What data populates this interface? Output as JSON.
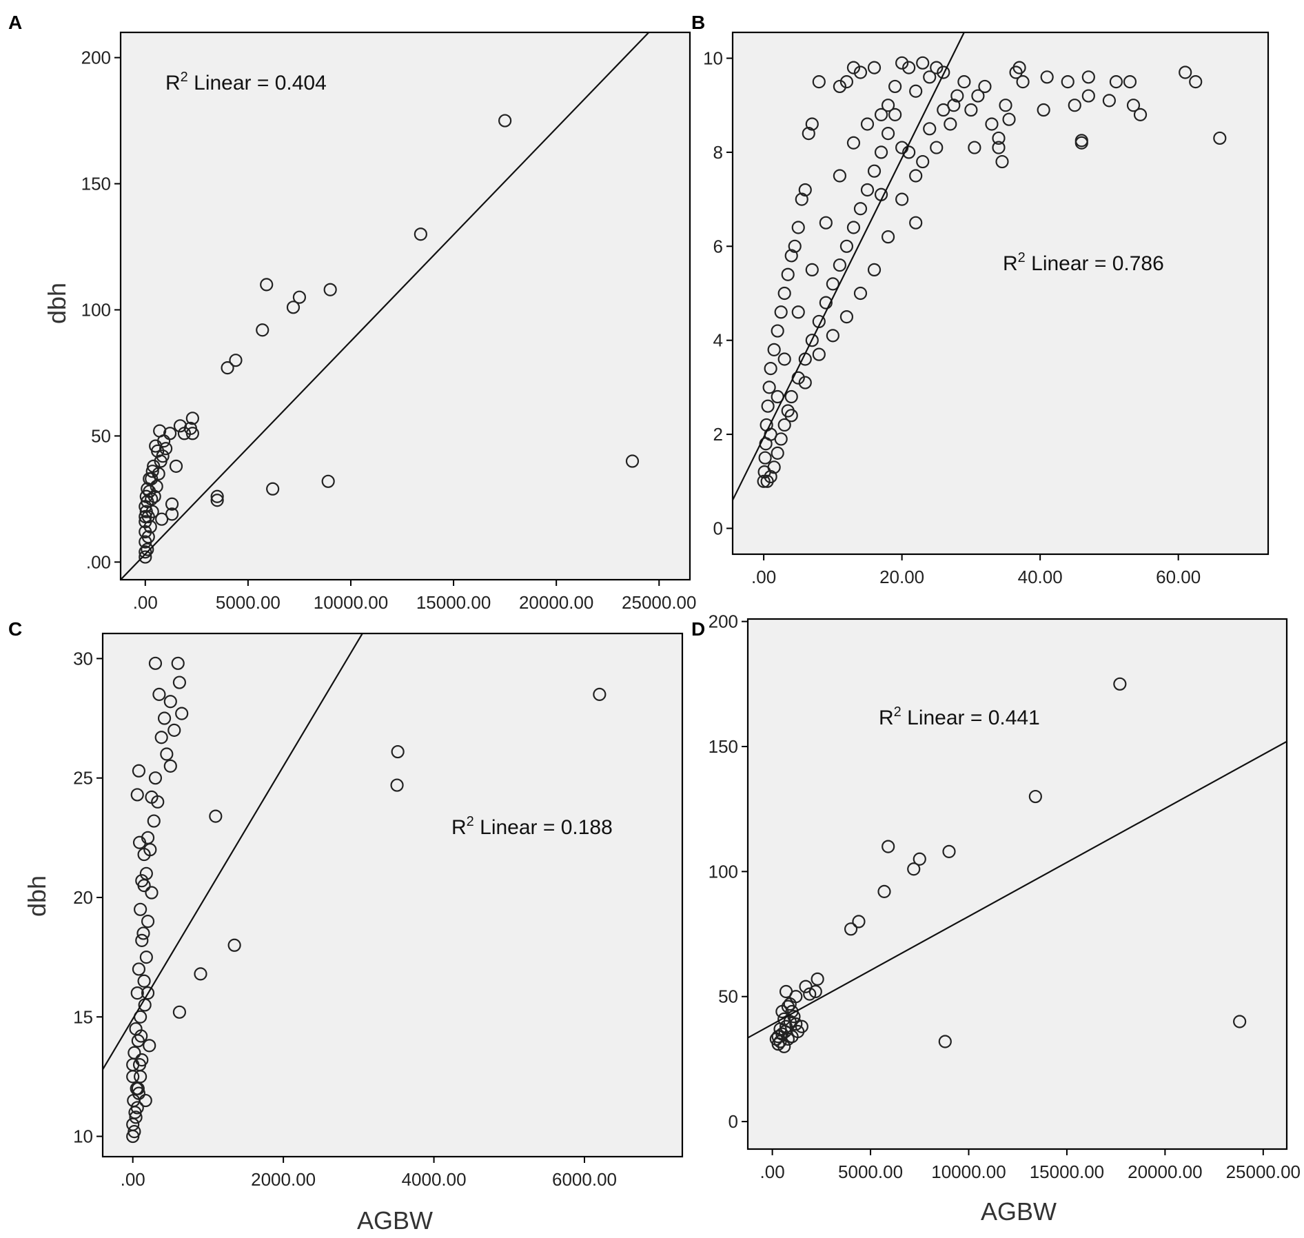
{
  "chart_data": [
    {
      "panel": "A",
      "type": "scatter",
      "ylabel": "dbh",
      "xlabel": "",
      "r2_prefix": "R",
      "r2_sup": "2",
      "r2_text": " Linear = 0.404",
      "xlim": [
        -1200,
        26500
      ],
      "ylim": [
        -7,
        210
      ],
      "xticks": [
        0,
        5000,
        10000,
        15000,
        20000,
        25000
      ],
      "xtick_labels": [
        ".00",
        "5000.00",
        "10000.00",
        "15000.00",
        "20000.00",
        "25000.00"
      ],
      "yticks": [
        0,
        50,
        100,
        150,
        200
      ],
      "ytick_labels": [
        ".00",
        "50",
        "100",
        "150",
        "200"
      ],
      "fit_line": [
        [
          -1200,
          -7
        ],
        [
          24500,
          210
        ]
      ],
      "points": [
        [
          17500,
          175
        ],
        [
          13400,
          130
        ],
        [
          5900,
          110
        ],
        [
          7500,
          105
        ],
        [
          7200,
          101
        ],
        [
          9000,
          108
        ],
        [
          5700,
          92
        ],
        [
          4000,
          77
        ],
        [
          4400,
          80
        ],
        [
          3500,
          26
        ],
        [
          3500,
          24.5
        ],
        [
          6200,
          29
        ],
        [
          8900,
          32
        ],
        [
          23700,
          40
        ],
        [
          2300,
          57
        ],
        [
          2200,
          53
        ],
        [
          2300,
          51
        ],
        [
          1700,
          54
        ],
        [
          1900,
          51
        ],
        [
          700,
          52
        ],
        [
          1200,
          51
        ],
        [
          900,
          48
        ],
        [
          1000,
          45
        ],
        [
          1500,
          38
        ],
        [
          1300,
          23
        ],
        [
          1300,
          19
        ],
        [
          800,
          17
        ],
        [
          400,
          38
        ],
        [
          300,
          33
        ],
        [
          200,
          28
        ],
        [
          100,
          24
        ],
        [
          50,
          20
        ],
        [
          0,
          16
        ],
        [
          0,
          12
        ],
        [
          0,
          8
        ],
        [
          0,
          4
        ],
        [
          0,
          2
        ],
        [
          100,
          5
        ],
        [
          150,
          10
        ],
        [
          250,
          14
        ],
        [
          350,
          20
        ],
        [
          450,
          26
        ],
        [
          550,
          30
        ],
        [
          650,
          35
        ],
        [
          750,
          40
        ],
        [
          850,
          42
        ],
        [
          600,
          44
        ],
        [
          500,
          46
        ],
        [
          200,
          33
        ],
        [
          350,
          36
        ],
        [
          100,
          29
        ],
        [
          50,
          26
        ],
        [
          0,
          22
        ],
        [
          0,
          18
        ],
        [
          150,
          18
        ],
        [
          300,
          25
        ]
      ]
    },
    {
      "panel": "B",
      "type": "scatter",
      "ylabel": "",
      "xlabel": "",
      "r2_prefix": "R",
      "r2_sup": "2",
      "r2_text": " Linear = 0.786",
      "xlim": [
        -4.5,
        73
      ],
      "ylim": [
        -0.55,
        10.55
      ],
      "xticks": [
        0,
        20,
        40,
        60
      ],
      "xtick_labels": [
        ".00",
        "20.00",
        "40.00",
        "60.00"
      ],
      "yticks": [
        0,
        2,
        4,
        6,
        8,
        10
      ],
      "ytick_labels": [
        "0",
        "2",
        "4",
        "6",
        "8",
        "10"
      ],
      "fit_line": [
        [
          -4.5,
          0.6
        ],
        [
          29,
          10.55
        ]
      ],
      "points": [
        [
          61,
          9.7
        ],
        [
          62.5,
          9.5
        ],
        [
          66,
          8.3
        ],
        [
          51,
          9.5
        ],
        [
          53,
          9.5
        ],
        [
          50,
          9.1
        ],
        [
          53.5,
          9.0
        ],
        [
          54.5,
          8.8
        ],
        [
          47,
          9.6
        ],
        [
          47,
          9.2
        ],
        [
          44,
          9.5
        ],
        [
          45,
          9.0
        ],
        [
          41,
          9.6
        ],
        [
          40.5,
          8.9
        ],
        [
          46,
          8.2
        ],
        [
          46,
          8.25
        ],
        [
          37,
          9.8
        ],
        [
          36.5,
          9.7
        ],
        [
          37.5,
          9.5
        ],
        [
          35,
          9.0
        ],
        [
          35.5,
          8.7
        ],
        [
          34,
          8.3
        ],
        [
          34,
          8.1
        ],
        [
          33,
          8.6
        ],
        [
          34.5,
          7.8
        ],
        [
          32,
          9.4
        ],
        [
          31,
          9.2
        ],
        [
          30,
          8.9
        ],
        [
          30.5,
          8.1
        ],
        [
          29,
          9.5
        ],
        [
          28,
          9.2
        ],
        [
          27,
          8.6
        ],
        [
          27.5,
          9.0
        ],
        [
          26,
          9.7
        ],
        [
          25,
          9.8
        ],
        [
          24,
          9.6
        ],
        [
          23,
          9.9
        ],
        [
          22,
          9.3
        ],
        [
          21,
          9.8
        ],
        [
          20,
          9.9
        ],
        [
          19,
          9.4
        ],
        [
          18,
          9.0
        ],
        [
          17,
          8.8
        ],
        [
          23,
          7.8
        ],
        [
          22,
          7.5
        ],
        [
          21,
          8.0
        ],
        [
          25,
          8.1
        ],
        [
          16,
          9.8
        ],
        [
          14,
          9.7
        ],
        [
          13,
          9.8
        ],
        [
          12,
          9.5
        ],
        [
          11,
          9.4
        ],
        [
          8,
          9.5
        ],
        [
          7,
          8.6
        ],
        [
          6.5,
          8.4
        ],
        [
          6,
          7.2
        ],
        [
          5.5,
          7.0
        ],
        [
          5,
          6.4
        ],
        [
          4.5,
          6.0
        ],
        [
          4,
          5.8
        ],
        [
          3.5,
          5.4
        ],
        [
          3,
          5.0
        ],
        [
          2.5,
          4.6
        ],
        [
          2,
          4.2
        ],
        [
          1.5,
          3.8
        ],
        [
          1,
          3.4
        ],
        [
          0.8,
          3.0
        ],
        [
          0.6,
          2.6
        ],
        [
          0.4,
          2.2
        ],
        [
          0.3,
          1.8
        ],
        [
          0.2,
          1.5
        ],
        [
          0.1,
          1.2
        ],
        [
          0,
          1.0
        ],
        [
          0.5,
          1.0
        ],
        [
          1,
          1.1
        ],
        [
          1.5,
          1.3
        ],
        [
          2,
          1.6
        ],
        [
          2.5,
          1.9
        ],
        [
          3,
          2.2
        ],
        [
          3.5,
          2.5
        ],
        [
          4,
          2.8
        ],
        [
          5,
          3.2
        ],
        [
          6,
          3.6
        ],
        [
          7,
          4.0
        ],
        [
          8,
          4.4
        ],
        [
          9,
          4.8
        ],
        [
          10,
          5.2
        ],
        [
          11,
          5.6
        ],
        [
          12,
          6.0
        ],
        [
          13,
          6.4
        ],
        [
          14,
          6.8
        ],
        [
          15,
          7.2
        ],
        [
          16,
          7.6
        ],
        [
          17,
          8.0
        ],
        [
          18,
          8.4
        ],
        [
          19,
          8.8
        ],
        [
          12,
          4.5
        ],
        [
          10,
          4.1
        ],
        [
          8,
          3.7
        ],
        [
          6,
          3.1
        ],
        [
          4,
          2.4
        ],
        [
          20,
          7.0
        ],
        [
          22,
          6.5
        ],
        [
          18,
          6.2
        ],
        [
          16,
          5.5
        ],
        [
          14,
          5.0
        ],
        [
          9,
          6.5
        ],
        [
          11,
          7.5
        ],
        [
          13,
          8.2
        ],
        [
          15,
          8.6
        ],
        [
          7,
          5.5
        ],
        [
          5,
          4.6
        ],
        [
          3,
          3.6
        ],
        [
          2,
          2.8
        ],
        [
          1,
          2.0
        ],
        [
          24,
          8.5
        ],
        [
          26,
          8.9
        ],
        [
          20,
          8.1
        ],
        [
          17,
          7.1
        ]
      ]
    },
    {
      "panel": "C",
      "type": "scatter",
      "ylabel": "dbh",
      "xlabel": "AGBW",
      "r2_prefix": "R",
      "r2_sup": "2",
      "r2_text": " Linear = 0.188",
      "xlim": [
        -400,
        7300
      ],
      "ylim": [
        9.15,
        31.05
      ],
      "xticks": [
        0,
        2000,
        4000,
        6000
      ],
      "xtick_labels": [
        ".00",
        "2000.00",
        "4000.00",
        "6000.00"
      ],
      "yticks": [
        10,
        15,
        20,
        25,
        30
      ],
      "ytick_labels": [
        "10",
        "15",
        "20",
        "25",
        "30"
      ],
      "fit_line": [
        [
          -400,
          12.8
        ],
        [
          3050,
          31.05
        ]
      ],
      "points": [
        [
          6200,
          28.5
        ],
        [
          3520,
          26.1
        ],
        [
          3510,
          24.7
        ],
        [
          1100,
          23.4
        ],
        [
          1350,
          18.0
        ],
        [
          900,
          16.8
        ],
        [
          620,
          15.2
        ],
        [
          600,
          29.8
        ],
        [
          620,
          29.0
        ],
        [
          500,
          28.2
        ],
        [
          650,
          27.7
        ],
        [
          550,
          27.0
        ],
        [
          450,
          26.0
        ],
        [
          500,
          25.5
        ],
        [
          300,
          29.8
        ],
        [
          350,
          28.5
        ],
        [
          420,
          27.5
        ],
        [
          380,
          26.7
        ],
        [
          300,
          25.0
        ],
        [
          250,
          24.2
        ],
        [
          330,
          24.0
        ],
        [
          280,
          23.2
        ],
        [
          200,
          22.5
        ],
        [
          150,
          21.8
        ],
        [
          230,
          22.0
        ],
        [
          180,
          21.0
        ],
        [
          250,
          20.2
        ],
        [
          150,
          20.5
        ],
        [
          100,
          19.5
        ],
        [
          200,
          19.0
        ],
        [
          120,
          18.2
        ],
        [
          180,
          17.5
        ],
        [
          80,
          17.0
        ],
        [
          150,
          16.5
        ],
        [
          60,
          16.0
        ],
        [
          200,
          16.0
        ],
        [
          220,
          13.8
        ],
        [
          100,
          15.0
        ],
        [
          40,
          14.5
        ],
        [
          70,
          14.0
        ],
        [
          20,
          13.5
        ],
        [
          0,
          13.0
        ],
        [
          0,
          12.5
        ],
        [
          50,
          12.0
        ],
        [
          10,
          11.5
        ],
        [
          30,
          11.0
        ],
        [
          0,
          10.5
        ],
        [
          0,
          10.0
        ],
        [
          20,
          10.2
        ],
        [
          40,
          10.8
        ],
        [
          60,
          11.2
        ],
        [
          80,
          11.8
        ],
        [
          100,
          12.5
        ],
        [
          120,
          13.2
        ],
        [
          170,
          11.5
        ],
        [
          60,
          24.3
        ],
        [
          80,
          25.3
        ],
        [
          90,
          22.3
        ],
        [
          120,
          20.7
        ],
        [
          140,
          18.5
        ],
        [
          160,
          15.5
        ],
        [
          110,
          14.2
        ],
        [
          90,
          13.0
        ],
        [
          70,
          12.0
        ]
      ]
    },
    {
      "panel": "D",
      "type": "scatter",
      "ylabel": "",
      "xlabel": "AGBW",
      "r2_prefix": "R",
      "r2_sup": "2",
      "r2_text": " Linear = 0.441",
      "xlim": [
        -1250,
        26200
      ],
      "ylim": [
        -11,
        201
      ],
      "xticks": [
        0,
        5000,
        10000,
        15000,
        20000,
        25000
      ],
      "xtick_labels": [
        ".00",
        "5000.00",
        "10000.00",
        "15000.00",
        "20000.00",
        "25000.00"
      ],
      "yticks": [
        0,
        50,
        100,
        150,
        200
      ],
      "ytick_labels": [
        "0",
        "50",
        "100",
        "150",
        "200"
      ],
      "fit_line": [
        [
          -1250,
          33.5
        ],
        [
          26200,
          152
        ]
      ],
      "points": [
        [
          17700,
          175
        ],
        [
          13400,
          130
        ],
        [
          5900,
          110
        ],
        [
          7500,
          105
        ],
        [
          7200,
          101
        ],
        [
          9000,
          108
        ],
        [
          5700,
          92
        ],
        [
          4000,
          77
        ],
        [
          4400,
          80
        ],
        [
          8800,
          32
        ],
        [
          23800,
          40
        ],
        [
          2300,
          57
        ],
        [
          2200,
          52
        ],
        [
          1700,
          54
        ],
        [
          1900,
          51
        ],
        [
          700,
          52
        ],
        [
          1200,
          50
        ],
        [
          900,
          47
        ],
        [
          1000,
          44
        ],
        [
          1500,
          38
        ],
        [
          1300,
          36
        ],
        [
          500,
          35
        ],
        [
          400,
          32
        ],
        [
          300,
          31
        ],
        [
          200,
          33
        ],
        [
          600,
          30
        ],
        [
          800,
          33
        ],
        [
          700,
          38
        ],
        [
          900,
          40
        ],
        [
          1100,
          42
        ],
        [
          600,
          41
        ],
        [
          500,
          44
        ],
        [
          400,
          37
        ],
        [
          300,
          34
        ],
        [
          1000,
          34
        ],
        [
          1200,
          39
        ],
        [
          800,
          46
        ],
        [
          650,
          36
        ]
      ]
    }
  ]
}
